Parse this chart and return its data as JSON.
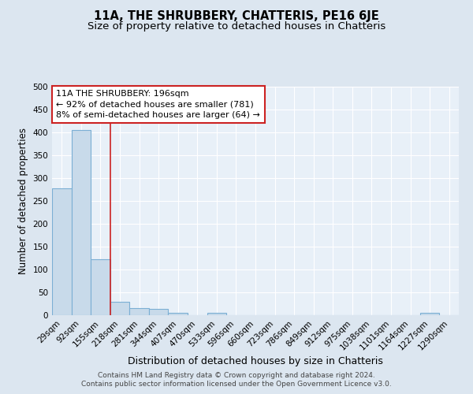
{
  "title": "11A, THE SHRUBBERY, CHATTERIS, PE16 6JE",
  "subtitle": "Size of property relative to detached houses in Chatteris",
  "xlabel": "Distribution of detached houses by size in Chatteris",
  "ylabel": "Number of detached properties",
  "categories": [
    "29sqm",
    "92sqm",
    "155sqm",
    "218sqm",
    "281sqm",
    "344sqm",
    "407sqm",
    "470sqm",
    "533sqm",
    "596sqm",
    "660sqm",
    "723sqm",
    "786sqm",
    "849sqm",
    "912sqm",
    "975sqm",
    "1038sqm",
    "1101sqm",
    "1164sqm",
    "1227sqm",
    "1290sqm"
  ],
  "values": [
    278,
    405,
    123,
    29,
    16,
    13,
    5,
    0,
    5,
    0,
    0,
    0,
    0,
    0,
    0,
    0,
    0,
    0,
    0,
    5,
    0
  ],
  "bar_color": "#c8daea",
  "bar_edge_color": "#7bafd4",
  "bar_linewidth": 0.8,
  "vline_color": "#cc2222",
  "annotation_text_line1": "11A THE SHRUBBERY: 196sqm",
  "annotation_text_line2": "← 92% of detached houses are smaller (781)",
  "annotation_text_line3": "8% of semi-detached houses are larger (64) →",
  "annotation_box_color": "#ffffff",
  "annotation_box_edge": "#cc2222",
  "ylim": [
    0,
    500
  ],
  "yticks": [
    0,
    50,
    100,
    150,
    200,
    250,
    300,
    350,
    400,
    450,
    500
  ],
  "bg_color": "#dce6f0",
  "plot_bg_color": "#e8f0f8",
  "grid_color": "#ffffff",
  "footer_line1": "Contains HM Land Registry data © Crown copyright and database right 2024.",
  "footer_line2": "Contains public sector information licensed under the Open Government Licence v3.0.",
  "title_fontsize": 10.5,
  "subtitle_fontsize": 9.5,
  "xlabel_fontsize": 9,
  "ylabel_fontsize": 8.5,
  "tick_fontsize": 7.5,
  "annotation_fontsize": 8,
  "footer_fontsize": 6.5
}
